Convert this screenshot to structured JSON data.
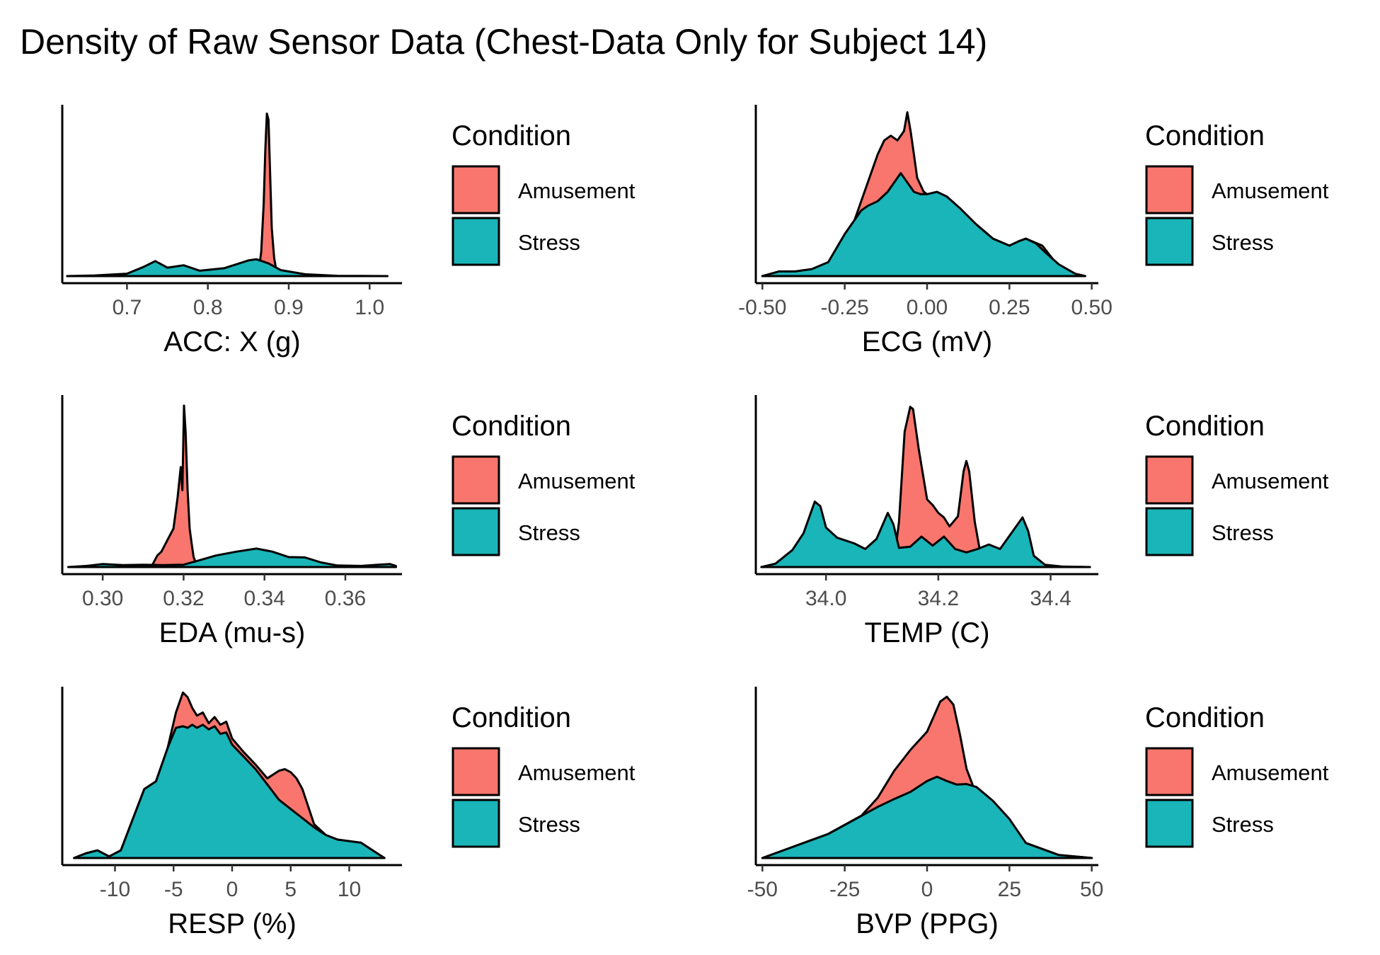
{
  "title": "Density of Raw Sensor Data (Chest-Data Only for Subject 14)",
  "colors": {
    "amusement": "#F8766D",
    "stress": "#1AB5B8",
    "outline": "#000000"
  },
  "chart_data": [
    {
      "type": "area",
      "subtype": "density",
      "xlabel": "ACC: X (g)",
      "ylabel": "",
      "xlim": [
        0.62,
        1.04
      ],
      "ylim": [
        0,
        28
      ],
      "xticks": [
        0.7,
        0.8,
        0.9,
        1.0
      ],
      "ticklabels": [
        "0.7",
        "0.8",
        "0.9",
        "1.0"
      ],
      "legend": {
        "title": "Condition",
        "position": "right",
        "entries": [
          "Amusement",
          "Stress"
        ]
      },
      "series": [
        {
          "name": "Amusement",
          "x": [
            0.626,
            0.862,
            0.866,
            0.869,
            0.871,
            0.873,
            0.875,
            0.877,
            0.879,
            0.882,
            0.886,
            1.022
          ],
          "y": [
            0,
            0,
            4,
            12,
            21,
            27,
            26,
            17,
            8,
            3,
            0,
            0
          ]
        },
        {
          "name": "Stress",
          "x": [
            0.626,
            0.66,
            0.7,
            0.72,
            0.735,
            0.75,
            0.77,
            0.79,
            0.82,
            0.85,
            0.86,
            0.875,
            0.89,
            0.92,
            0.96,
            1.022
          ],
          "y": [
            0,
            0.1,
            0.4,
            1.5,
            2.5,
            1.4,
            1.8,
            0.9,
            1.3,
            2.6,
            2.8,
            2.1,
            1.0,
            0.3,
            0.05,
            0
          ]
        }
      ]
    },
    {
      "type": "area",
      "subtype": "density",
      "xlabel": "ECG (mV)",
      "ylabel": "",
      "xlim": [
        -0.52,
        0.52
      ],
      "ylim": [
        0,
        3.6
      ],
      "xticks": [
        -0.5,
        -0.25,
        0,
        0.25,
        0.5
      ],
      "ticklabels": [
        "-0.50",
        "-0.25",
        "0.00",
        "0.25",
        "0.50"
      ],
      "legend": {
        "title": "Condition",
        "position": "right",
        "entries": [
          "Amusement",
          "Stress"
        ]
      },
      "series": [
        {
          "name": "Amusement",
          "x": [
            -0.5,
            -0.4,
            -0.3,
            -0.25,
            -0.2,
            -0.15,
            -0.13,
            -0.11,
            -0.09,
            -0.07,
            -0.06,
            -0.05,
            -0.04,
            -0.03,
            -0.01,
            0.0,
            0.05,
            0.1,
            0.15,
            0.2,
            0.25,
            0.3,
            0.35,
            0.4,
            0.45,
            0.48
          ],
          "y": [
            0,
            0.05,
            0.2,
            0.6,
            1.6,
            2.6,
            2.9,
            3.0,
            2.9,
            3.1,
            3.5,
            3.1,
            2.6,
            2.1,
            1.8,
            1.75,
            1.7,
            1.4,
            1.1,
            0.8,
            0.65,
            0.8,
            0.65,
            0.2,
            0.05,
            0
          ]
        },
        {
          "name": "Stress",
          "x": [
            -0.5,
            -0.45,
            -0.4,
            -0.35,
            -0.3,
            -0.25,
            -0.2,
            -0.18,
            -0.15,
            -0.12,
            -0.1,
            -0.08,
            -0.06,
            -0.04,
            -0.02,
            0.0,
            0.03,
            0.06,
            0.1,
            0.15,
            0.2,
            0.25,
            0.28,
            0.3,
            0.33,
            0.36,
            0.4,
            0.45,
            0.48
          ],
          "y": [
            0,
            0.1,
            0.1,
            0.15,
            0.3,
            0.9,
            1.4,
            1.5,
            1.6,
            1.8,
            2.0,
            2.2,
            2.0,
            1.8,
            1.75,
            1.75,
            1.8,
            1.7,
            1.45,
            1.1,
            0.8,
            0.65,
            0.75,
            0.8,
            0.7,
            0.5,
            0.25,
            0.05,
            0
          ]
        }
      ]
    },
    {
      "type": "area",
      "subtype": "density",
      "xlabel": "EDA (mu-s)",
      "ylabel": "",
      "xlim": [
        0.29,
        0.374
      ],
      "ylim": [
        0,
        440
      ],
      "xticks": [
        0.3,
        0.32,
        0.34,
        0.36
      ],
      "ticklabels": [
        "0.30",
        "0.32",
        "0.34",
        "0.36"
      ],
      "legend": {
        "title": "Condition",
        "position": "right",
        "entries": [
          "Amusement",
          "Stress"
        ]
      },
      "series": [
        {
          "name": "Amusement",
          "x": [
            0.2915,
            0.312,
            0.3135,
            0.3145,
            0.3155,
            0.3165,
            0.3175,
            0.3185,
            0.3193,
            0.3197,
            0.3201,
            0.3205,
            0.321,
            0.3215,
            0.322,
            0.3225,
            0.3235,
            0.3725
          ],
          "y": [
            0,
            0,
            30,
            40,
            60,
            80,
            100,
            180,
            260,
            200,
            420,
            350,
            200,
            100,
            60,
            25,
            0,
            0
          ]
        },
        {
          "name": "Stress",
          "x": [
            0.2915,
            0.296,
            0.3,
            0.305,
            0.31,
            0.315,
            0.32,
            0.323,
            0.328,
            0.333,
            0.338,
            0.342,
            0.346,
            0.35,
            0.354,
            0.358,
            0.364,
            0.368,
            0.371,
            0.3725
          ],
          "y": [
            0,
            3,
            8,
            5,
            6,
            5,
            6,
            15,
            30,
            40,
            48,
            40,
            26,
            25,
            12,
            4,
            3,
            6,
            8,
            3
          ]
        }
      ]
    },
    {
      "type": "area",
      "subtype": "density",
      "xlabel": "TEMP (C)",
      "ylabel": "",
      "xlim": [
        33.875,
        34.485
      ],
      "ylim": [
        0,
        15
      ],
      "xticks": [
        34.0,
        34.2,
        34.4
      ],
      "ticklabels": [
        "34.0",
        "34.2",
        "34.4"
      ],
      "legend": {
        "title": "Condition",
        "position": "right",
        "entries": [
          "Amusement",
          "Stress"
        ]
      },
      "series": [
        {
          "name": "Amusement",
          "x": [
            33.885,
            34.12,
            34.13,
            34.14,
            34.15,
            34.155,
            34.165,
            34.18,
            34.19,
            34.2,
            34.21,
            34.22,
            34.235,
            34.245,
            34.25,
            34.255,
            34.265,
            34.275,
            34.29,
            34.47
          ],
          "y": [
            0,
            0,
            4,
            12,
            14.2,
            14.0,
            10.5,
            6.0,
            5.5,
            4.8,
            4.4,
            3.6,
            4.5,
            8.5,
            9.4,
            8.5,
            4.0,
            1.2,
            0,
            0
          ]
        },
        {
          "name": "Stress",
          "x": [
            33.885,
            33.91,
            33.94,
            33.96,
            33.98,
            33.99,
            34.0,
            34.02,
            34.05,
            34.07,
            34.09,
            34.11,
            34.12,
            34.13,
            34.15,
            34.17,
            34.19,
            34.21,
            34.23,
            34.25,
            34.27,
            34.29,
            34.31,
            34.33,
            34.35,
            34.36,
            34.37,
            34.39,
            34.42,
            34.47
          ],
          "y": [
            0,
            0.3,
            1.5,
            3.0,
            5.8,
            5.4,
            3.5,
            2.6,
            2.1,
            1.6,
            2.5,
            4.8,
            3.8,
            1.7,
            1.8,
            2.7,
            1.9,
            2.7,
            1.6,
            1.3,
            1.6,
            2.0,
            1.6,
            3.0,
            4.4,
            3.2,
            1.0,
            0.2,
            0.05,
            0
          ]
        }
      ]
    },
    {
      "type": "area",
      "subtype": "density",
      "xlabel": "RESP (%)",
      "ylabel": "",
      "xlim": [
        -14.5,
        14.5
      ],
      "ylim": [
        0,
        0.11
      ],
      "xticks": [
        -10,
        -5,
        0,
        5,
        10
      ],
      "ticklabels": [
        "-10",
        "-5",
        "0",
        "5",
        "10"
      ],
      "legend": {
        "title": "Condition",
        "position": "right",
        "entries": [
          "Amusement",
          "Stress"
        ]
      },
      "series": [
        {
          "name": "Amusement",
          "x": [
            -13.5,
            -12.5,
            -11.5,
            -10.5,
            -9.5,
            -8.5,
            -7.5,
            -6.5,
            -5.5,
            -4.8,
            -4.2,
            -3.8,
            -3.4,
            -3.0,
            -2.5,
            -2.0,
            -1.5,
            -1.0,
            -0.5,
            0,
            1,
            2,
            3,
            4,
            4.5,
            5,
            5.5,
            6,
            7,
            8,
            9,
            10,
            11,
            12,
            13
          ],
          "y": [
            0,
            0.003,
            0.005,
            0.001,
            0.005,
            0.025,
            0.045,
            0.05,
            0.072,
            0.095,
            0.108,
            0.105,
            0.098,
            0.093,
            0.095,
            0.088,
            0.092,
            0.087,
            0.089,
            0.078,
            0.069,
            0.061,
            0.052,
            0.057,
            0.058,
            0.056,
            0.052,
            0.045,
            0.022,
            0.015,
            0.012,
            0.011,
            0.01,
            0.005,
            0
          ]
        },
        {
          "name": "Stress",
          "x": [
            -13.5,
            -12.5,
            -11.5,
            -10.5,
            -9.5,
            -8.5,
            -7.5,
            -6.5,
            -5.5,
            -4.8,
            -4.2,
            -3.8,
            -3.4,
            -3.0,
            -2.5,
            -2.0,
            -1.5,
            -1.0,
            -0.5,
            0,
            1,
            2,
            3,
            4,
            5,
            6,
            7,
            8,
            9,
            10,
            11,
            12,
            13
          ],
          "y": [
            0,
            0.003,
            0.005,
            0.001,
            0.005,
            0.025,
            0.045,
            0.05,
            0.072,
            0.085,
            0.086,
            0.085,
            0.087,
            0.085,
            0.087,
            0.084,
            0.086,
            0.081,
            0.082,
            0.074,
            0.066,
            0.058,
            0.048,
            0.038,
            0.032,
            0.026,
            0.02,
            0.015,
            0.012,
            0.011,
            0.01,
            0.005,
            0
          ]
        }
      ]
    },
    {
      "type": "area",
      "subtype": "density",
      "xlabel": "BVP (PPG)",
      "ylabel": "",
      "xlim": [
        -52,
        52
      ],
      "ylim": [
        0,
        0.028
      ],
      "xticks": [
        -50,
        -25,
        0,
        25,
        50
      ],
      "ticklabels": [
        "-50",
        "-25",
        "0",
        "25",
        "50"
      ],
      "legend": {
        "title": "Condition",
        "position": "right",
        "entries": [
          "Amusement",
          "Stress"
        ]
      },
      "series": [
        {
          "name": "Amusement",
          "x": [
            -50,
            -40,
            -30,
            -20,
            -15,
            -10,
            -5,
            0,
            2,
            4,
            6,
            8,
            10,
            12,
            15,
            20,
            25,
            30,
            40,
            50
          ],
          "y": [
            0,
            0.002,
            0.004,
            0.007,
            0.01,
            0.0145,
            0.018,
            0.021,
            0.0235,
            0.026,
            0.0268,
            0.0255,
            0.0205,
            0.0148,
            0.0105,
            0.0085,
            0.0062,
            0.0025,
            0.0005,
            0
          ]
        },
        {
          "name": "Stress",
          "x": [
            -50,
            -40,
            -30,
            -20,
            -15,
            -10,
            -5,
            0,
            3,
            6,
            9,
            12,
            15,
            20,
            25,
            30,
            40,
            50
          ],
          "y": [
            0,
            0.002,
            0.004,
            0.007,
            0.0085,
            0.0098,
            0.011,
            0.0128,
            0.0135,
            0.0128,
            0.0122,
            0.0123,
            0.0118,
            0.0095,
            0.0065,
            0.0025,
            0.0005,
            0
          ]
        }
      ]
    }
  ]
}
